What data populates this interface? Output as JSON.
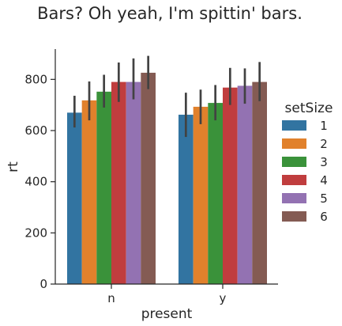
{
  "chart_data": {
    "type": "bar",
    "title": "Bars? Oh yeah, I'm spittin' bars.",
    "xlabel": "present",
    "ylabel": "rt",
    "categories": [
      "n",
      "y"
    ],
    "ylim": [
      0,
      930
    ],
    "yticks": [
      0,
      200,
      400,
      600,
      800
    ],
    "grid": false,
    "legend": {
      "title": "setSize",
      "placement": "right"
    },
    "series": [
      {
        "name": "1",
        "color": "#3274a1",
        "values": [
          670,
          662
        ],
        "ci_low": [
          612,
          575
        ],
        "ci_high": [
          736,
          748
        ]
      },
      {
        "name": "2",
        "color": "#e1812c",
        "values": [
          718,
          693
        ],
        "ci_low": [
          640,
          625
        ],
        "ci_high": [
          792,
          760
        ]
      },
      {
        "name": "3",
        "color": "#3a923a",
        "values": [
          752,
          708
        ],
        "ci_low": [
          690,
          640
        ],
        "ci_high": [
          818,
          778
        ]
      },
      {
        "name": "4",
        "color": "#c03d3e",
        "values": [
          790,
          768
        ],
        "ci_low": [
          712,
          700
        ],
        "ci_high": [
          866,
          845
        ]
      },
      {
        "name": "5",
        "color": "#9372b2",
        "values": [
          790,
          775
        ],
        "ci_low": [
          722,
          705
        ],
        "ci_high": [
          882,
          843
        ]
      },
      {
        "name": "6",
        "color": "#845b53",
        "values": [
          826,
          790
        ],
        "ci_low": [
          762,
          715
        ],
        "ci_high": [
          892,
          868
        ]
      }
    ]
  }
}
